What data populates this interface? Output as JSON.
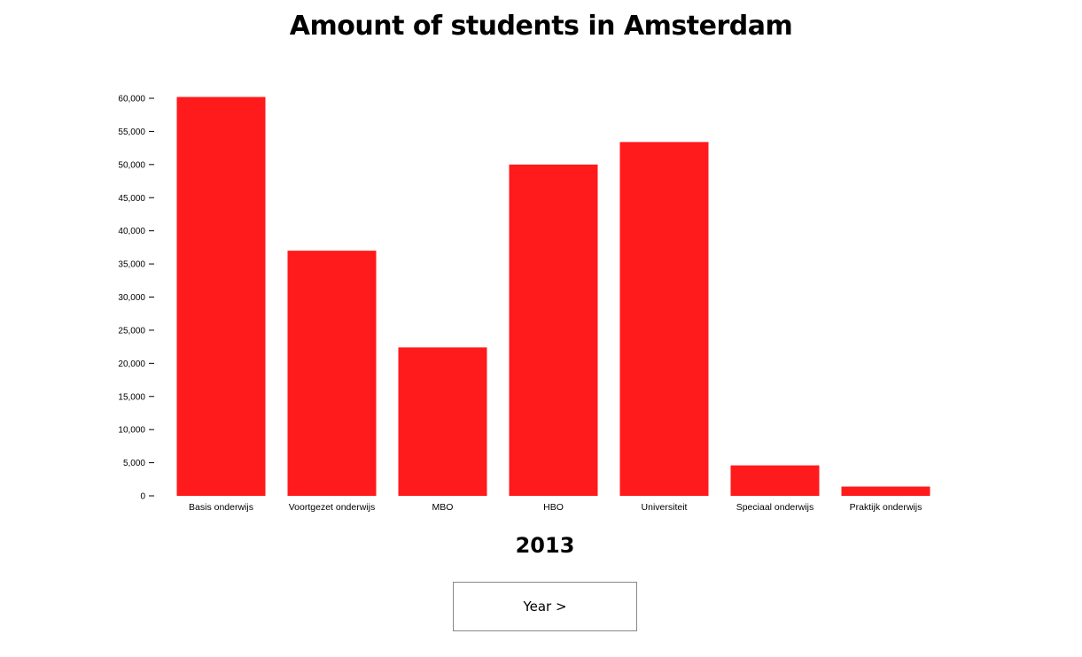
{
  "title": "Amount of students in Amsterdam",
  "year": "2013",
  "controls": {
    "next_year_label": "Year >"
  },
  "colors": {
    "bar": "#ff1a1c",
    "axis": "#000000"
  },
  "chart_data": {
    "type": "bar",
    "title": "Amount of students in Amsterdam",
    "categories": [
      "Basis onderwijs",
      "Voortgezet onderwijs",
      "MBO",
      "HBO",
      "Universiteit",
      "Speciaal onderwijs",
      "Praktijk onderwijs"
    ],
    "values": [
      60200,
      37000,
      22400,
      50000,
      53400,
      4600,
      1400
    ],
    "ylim": [
      0,
      60000
    ],
    "yticks": [
      0,
      5000,
      10000,
      15000,
      20000,
      25000,
      30000,
      35000,
      40000,
      45000,
      50000,
      55000,
      60000
    ],
    "ytick_labels": [
      "0",
      "5,000",
      "10,000",
      "15,000",
      "20,000",
      "25,000",
      "30,000",
      "35,000",
      "40,000",
      "45,000",
      "50,000",
      "55,000",
      "60,000"
    ],
    "grid": false,
    "legend": "none"
  }
}
